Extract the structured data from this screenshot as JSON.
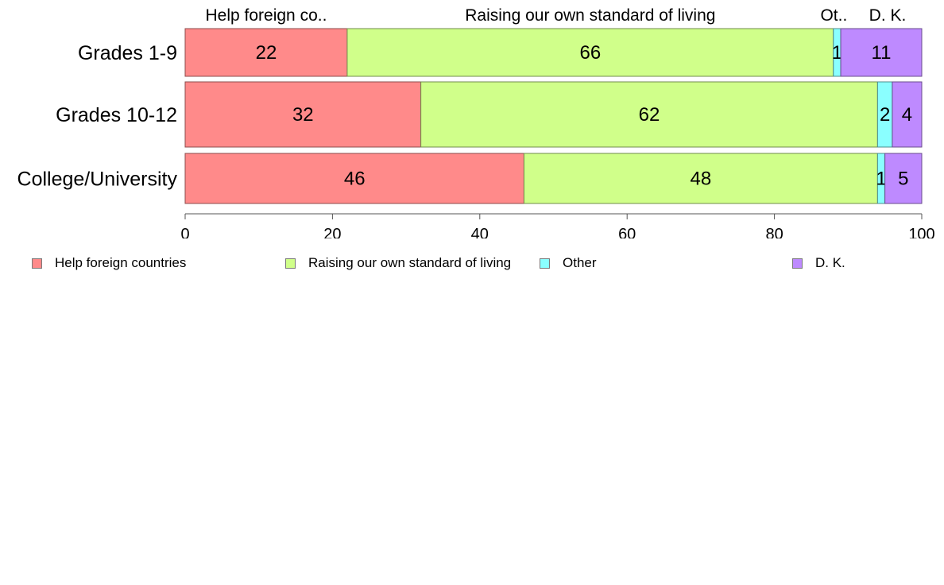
{
  "chart_data": {
    "type": "bar",
    "orientation": "horizontal",
    "stacked": true,
    "categories": [
      "Grades 1-9",
      "Grades 10-12",
      "College/University"
    ],
    "series": [
      {
        "name": "Help foreign countries",
        "short_label": "Help foreign co..",
        "color": "#ff8a8a",
        "values": [
          22,
          32,
          46
        ]
      },
      {
        "name": "Raising our own standard of living",
        "short_label": "Raising our own standard of living",
        "color": "#d0ff8a",
        "values": [
          66,
          62,
          48
        ]
      },
      {
        "name": "Other",
        "short_label": "Ot..",
        "color": "#8affff",
        "values": [
          1,
          2,
          1
        ]
      },
      {
        "name": "D. K.",
        "short_label": "D. K.",
        "color": "#be8aff",
        "values": [
          11,
          4,
          5
        ]
      }
    ],
    "xlim": [
      0,
      100
    ],
    "xticks": [
      "0",
      "20",
      "40",
      "60",
      "80",
      "100"
    ],
    "grid": false,
    "legend_position": "bottom"
  }
}
